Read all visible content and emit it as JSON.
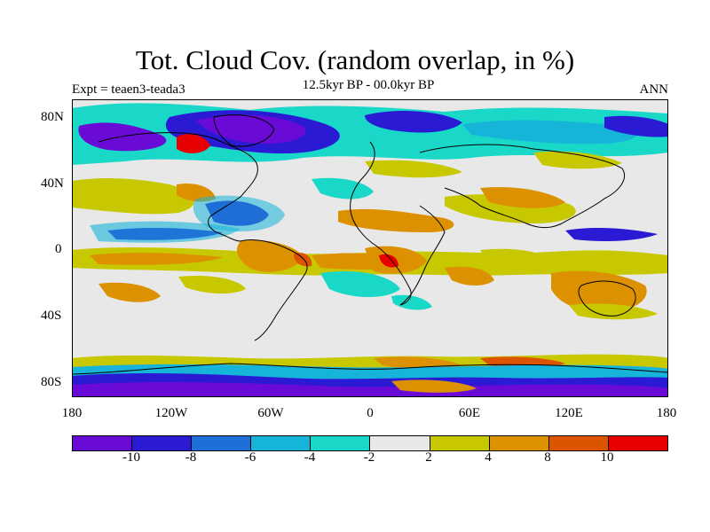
{
  "title": "Tot. Cloud Cov. (random overlap, in %)",
  "subtitle": "12.5kyr BP - 00.0kyr BP",
  "experiment": "Expt = teaen3-teada3",
  "season": "ANN",
  "y_ticks": [
    "80N",
    "40N",
    "0",
    "40S",
    "80S"
  ],
  "x_ticks": [
    "180",
    "120W",
    "60W",
    "0",
    "60E",
    "120E",
    "180"
  ],
  "colorbar": {
    "colors": [
      "#6a0ad6",
      "#2a1ad4",
      "#1e6fd8",
      "#16b4d8",
      "#1ad8c8",
      "#e8e8e8",
      "#c8c800",
      "#dc9200",
      "#dc5400",
      "#e80000"
    ],
    "labels": [
      "-10",
      "-8",
      "-6",
      "-4",
      "-2",
      "2",
      "4",
      "8",
      "10"
    ]
  }
}
